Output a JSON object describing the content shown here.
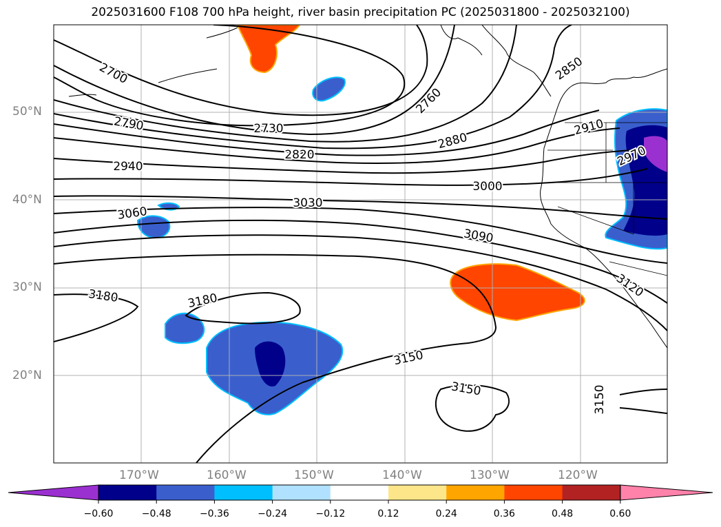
{
  "title": "2025031600 F108 700 hPa height, river basin precipitation PC (2025031800 - 2025032100)",
  "lat_labels": [
    "50°N",
    "40°N",
    "30°N",
    "20°N"
  ],
  "lon_labels": [
    "170°W",
    "160°W",
    "150°W",
    "140°W",
    "130°W",
    "120°W"
  ],
  "contour_labels": {
    "c2700": "2700",
    "c2730": "2730",
    "c2760": "2760",
    "c2790": "2790",
    "c2820": "2820",
    "c2850": "2850",
    "c2880": "2880",
    "c2910": "2910",
    "c2940": "2940",
    "c2970": "2970",
    "c3000": "3000",
    "c3030": "3030",
    "c3060": "3060",
    "c3090": "3090",
    "c3120": "3120",
    "c3150a": "3150",
    "c3150b": "3150",
    "c3150c": "3150",
    "c3180a": "3180",
    "c3180b": "3180"
  },
  "colorbar": {
    "ticks": [
      "−0.60",
      "−0.48",
      "−0.36",
      "−0.24",
      "−0.12",
      "0.12",
      "0.24",
      "0.36",
      "0.48",
      "0.60"
    ],
    "colors": [
      "#9b30d0",
      "#00008b",
      "#3a5fcd",
      "#00bfff",
      "#b0e2ff",
      "#ffffff",
      "#fde68a",
      "#ffa500",
      "#ff4500",
      "#b22222",
      "#ff82ab"
    ],
    "under_color": "#9b30d0",
    "over_color": "#ff82ab"
  }
}
